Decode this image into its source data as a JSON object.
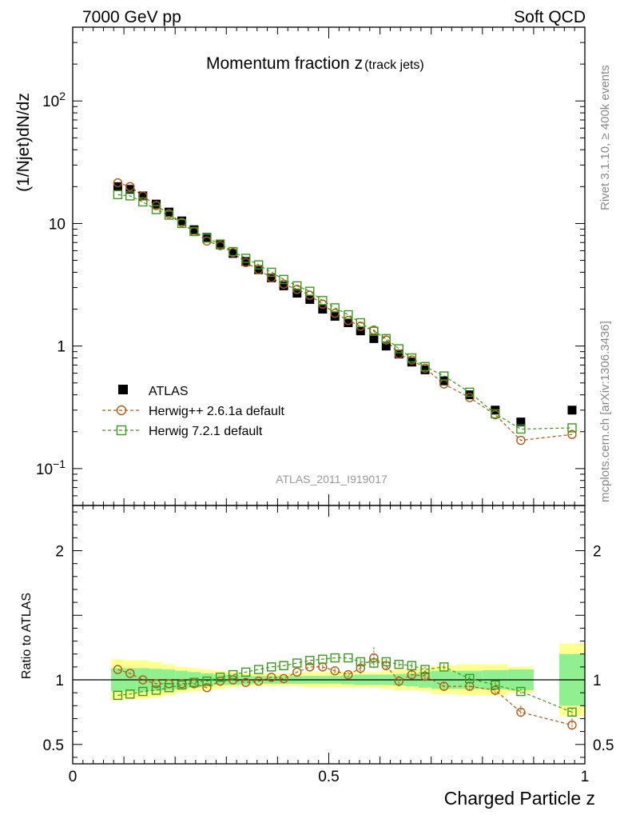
{
  "header": {
    "left": "7000 GeV pp",
    "right": "Soft QCD",
    "side_top": "Rivet 3.1.10, ≥ 400k events",
    "side_bottom": "mcplots.cern.ch [arXiv:1306.3436]"
  },
  "colors": {
    "data": "#000000",
    "herwigpp": "#b05a0f",
    "herwig7": "#3a9a1a",
    "band_inner": "#90f090",
    "band_outer": "#ffff90",
    "watermark": "#999999"
  },
  "chart_data": [
    {
      "type": "scatter",
      "panel": "main",
      "title_main": "Momentum fraction z",
      "title_sub": "(track jets)",
      "ylabel": "(1/Njet)dN/dz",
      "xlabel": "",
      "xlim": [
        0,
        1
      ],
      "ylim": [
        0.05,
        400
      ],
      "yscale": "log",
      "y_ticks": [
        {
          "value": 100,
          "base": "10",
          "exp": "2"
        },
        {
          "value": 10,
          "base": "10",
          "exp": ""
        },
        {
          "value": 1,
          "base": "1",
          "exp": ""
        },
        {
          "value": 0.1,
          "base": "10",
          "exp": "−1"
        }
      ],
      "analysis_label": "ATLAS_2011_I919017",
      "legend": [
        "ATLAS",
        "Herwig++ 2.6.1a default",
        "Herwig 7.2.1 default"
      ],
      "x": [
        0.088,
        0.112,
        0.137,
        0.163,
        0.188,
        0.213,
        0.237,
        0.262,
        0.288,
        0.313,
        0.338,
        0.363,
        0.388,
        0.412,
        0.438,
        0.463,
        0.488,
        0.512,
        0.538,
        0.562,
        0.588,
        0.612,
        0.637,
        0.662,
        0.688,
        0.725,
        0.775,
        0.825,
        0.875,
        0.975
      ],
      "series": [
        {
          "name": "ATLAS",
          "values": [
            20.0,
            19.0,
            16.8,
            14.4,
            12.4,
            10.5,
            8.9,
            7.7,
            6.7,
            5.7,
            4.9,
            4.2,
            3.6,
            3.1,
            2.7,
            2.4,
            2.0,
            1.75,
            1.55,
            1.33,
            1.15,
            1.0,
            0.86,
            0.74,
            0.64,
            0.52,
            0.4,
            0.3,
            0.24,
            0.3
          ]
        },
        {
          "name": "Herwig++ 2.6.1a default",
          "values": [
            21.5,
            20.0,
            16.8,
            14.0,
            12.0,
            10.2,
            8.6,
            7.2,
            6.6,
            5.8,
            4.8,
            4.2,
            3.6,
            3.2,
            2.9,
            2.6,
            2.2,
            1.85,
            1.62,
            1.45,
            1.35,
            1.12,
            0.86,
            0.77,
            0.66,
            0.49,
            0.38,
            0.275,
            0.17,
            0.19
          ]
        },
        {
          "name": "Herwig 7.2.1 default",
          "values": [
            17.2,
            16.8,
            15.0,
            13.0,
            11.7,
            10.0,
            8.6,
            7.6,
            6.8,
            5.9,
            5.2,
            4.6,
            4.0,
            3.5,
            3.1,
            2.8,
            2.35,
            2.05,
            1.8,
            1.55,
            1.32,
            1.15,
            0.95,
            0.8,
            0.68,
            0.57,
            0.42,
            0.28,
            0.21,
            0.215
          ]
        }
      ]
    },
    {
      "type": "line",
      "panel": "ratio",
      "ylabel": "Ratio to ATLAS",
      "xlabel": "Charged Particle z",
      "xlim": [
        0,
        1
      ],
      "ylim": [
        0.35,
        2.35
      ],
      "y_ticks": [
        "0.5",
        "1",
        "2"
      ],
      "x_ticks": [
        "0",
        "0.5",
        "1"
      ],
      "reference": 1,
      "x": [
        0.088,
        0.112,
        0.137,
        0.163,
        0.188,
        0.213,
        0.237,
        0.262,
        0.288,
        0.313,
        0.338,
        0.363,
        0.388,
        0.412,
        0.438,
        0.463,
        0.488,
        0.512,
        0.538,
        0.562,
        0.588,
        0.612,
        0.637,
        0.662,
        0.688,
        0.725,
        0.775,
        0.825,
        0.875,
        0.975
      ],
      "bin_edges": [
        0.075,
        0.1,
        0.125,
        0.15,
        0.175,
        0.2,
        0.225,
        0.25,
        0.275,
        0.3,
        0.325,
        0.35,
        0.375,
        0.4,
        0.425,
        0.45,
        0.475,
        0.5,
        0.525,
        0.55,
        0.575,
        0.6,
        0.625,
        0.65,
        0.675,
        0.7,
        0.75,
        0.8,
        0.85,
        0.9,
        0.95,
        1.0
      ],
      "band_inner_halfwidth": [
        0.09,
        0.09,
        0.09,
        0.085,
        0.08,
        0.07,
        0.06,
        0.05,
        0.04,
        0.04,
        0.035,
        0.03,
        0.03,
        0.03,
        0.03,
        0.03,
        0.03,
        0.03,
        0.035,
        0.04,
        0.04,
        0.04,
        0.045,
        0.05,
        0.06,
        0.07,
        0.07,
        0.075,
        0.08,
        0.0,
        0.2
      ],
      "band_outer_halfwidth": [
        0.16,
        0.15,
        0.15,
        0.14,
        0.12,
        0.1,
        0.09,
        0.08,
        0.07,
        0.06,
        0.05,
        0.05,
        0.05,
        0.05,
        0.05,
        0.06,
        0.06,
        0.06,
        0.06,
        0.06,
        0.06,
        0.07,
        0.08,
        0.08,
        0.09,
        0.11,
        0.12,
        0.12,
        0.1,
        0.0,
        0.28
      ],
      "series": [
        {
          "name": "Herwig++ 2.6.1a default",
          "values": [
            1.08,
            1.05,
            1.0,
            0.97,
            0.97,
            0.97,
            0.97,
            0.94,
            0.99,
            1.0,
            0.98,
            0.99,
            1.02,
            1.01,
            1.06,
            1.1,
            1.1,
            1.07,
            1.04,
            1.09,
            1.17,
            1.11,
            0.99,
            1.04,
            1.03,
            0.95,
            0.95,
            0.92,
            0.75,
            0.65
          ],
          "errors": [
            0.01,
            0.01,
            0.01,
            0.01,
            0.01,
            0.01,
            0.01,
            0.01,
            0.01,
            0.01,
            0.01,
            0.01,
            0.01,
            0.01,
            0.01,
            0.01,
            0.02,
            0.02,
            0.02,
            0.04,
            0.08,
            0.03,
            0.04,
            0.03,
            0.04,
            0.03,
            0.03,
            0.04,
            0.05,
            0.05
          ]
        },
        {
          "name": "Herwig 7.2.1 default",
          "values": [
            0.88,
            0.89,
            0.91,
            0.92,
            0.94,
            0.96,
            0.98,
            0.99,
            1.02,
            1.04,
            1.06,
            1.08,
            1.1,
            1.11,
            1.13,
            1.15,
            1.16,
            1.17,
            1.17,
            1.14,
            1.13,
            1.14,
            1.12,
            1.11,
            1.08,
            1.1,
            1.01,
            0.96,
            0.91,
            0.75
          ],
          "errors": [
            0.01,
            0.01,
            0.01,
            0.01,
            0.01,
            0.01,
            0.01,
            0.01,
            0.01,
            0.01,
            0.01,
            0.01,
            0.01,
            0.01,
            0.01,
            0.01,
            0.01,
            0.01,
            0.01,
            0.02,
            0.02,
            0.02,
            0.02,
            0.02,
            0.02,
            0.02,
            0.02,
            0.02,
            0.02,
            0.03
          ]
        }
      ]
    }
  ]
}
